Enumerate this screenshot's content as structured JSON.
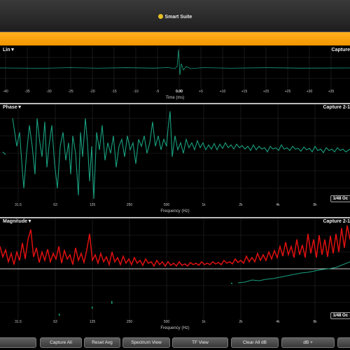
{
  "window": {
    "title": "Smart Suite",
    "logo_icon": "smart-logo-icon"
  },
  "colors": {
    "accent": "#f6a000",
    "trace_green": "#19a07f",
    "trace_red": "#e01010",
    "grid": "#333333"
  },
  "impulse": {
    "label": "Lin▼",
    "capture": "Capture",
    "x_ticks": [
      "-40",
      "-35",
      "-30",
      "-25",
      "-20",
      "-15",
      "-10",
      "-5",
      "0.00",
      "+5",
      "+10",
      "+15",
      "+20",
      "+25",
      "+30",
      "+35"
    ],
    "x_title": "Time (ms)"
  },
  "phase": {
    "label": "Phase▼",
    "capture": "Capture 2-1",
    "octave": "1/48 Oc",
    "x_ticks": [
      "31.5",
      "63",
      "125",
      "250",
      "500",
      "1k",
      "2k",
      "4k",
      "8k"
    ],
    "x_title": "Frequency (Hz)"
  },
  "magnitude": {
    "label": "Magnitude▼",
    "capture": "Capture 2-1",
    "octave": "1/48 Oc",
    "x_ticks": [
      "31.5",
      "63",
      "125",
      "250",
      "500",
      "1k",
      "2k",
      "4k",
      "8k"
    ],
    "x_title": "Frequency (Hz)"
  },
  "toolbar": {
    "buttons": [
      "",
      "Capture All",
      "Reset Avg",
      "Spectrum View",
      "TF View",
      "Clear All dB",
      "dB +",
      ""
    ]
  }
}
